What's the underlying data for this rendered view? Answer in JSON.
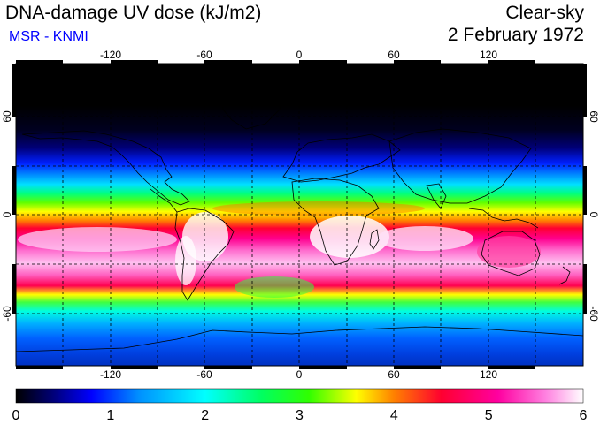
{
  "header": {
    "title": "DNA-damage UV dose (kJ/m2)",
    "source": "MSR - KNMI",
    "condition": "Clear-sky",
    "date": "2 February 1972"
  },
  "map": {
    "lon_ticks": [
      "-120",
      "-60",
      "0",
      "60",
      "120"
    ],
    "lat_ticks": [
      "60",
      "0",
      "-60"
    ]
  },
  "colorbar": {
    "labels": [
      "0",
      "1",
      "2",
      "3",
      "4",
      "5",
      "6"
    ],
    "min": 0,
    "max": 6,
    "stops": [
      {
        "v": 0.0,
        "c": "#000000"
      },
      {
        "v": 0.35,
        "c": "#00006a"
      },
      {
        "v": 0.8,
        "c": "#0000ff"
      },
      {
        "v": 1.3,
        "c": "#0090ff"
      },
      {
        "v": 2.0,
        "c": "#00ffff"
      },
      {
        "v": 2.6,
        "c": "#00ff60"
      },
      {
        "v": 3.1,
        "c": "#30ff00"
      },
      {
        "v": 3.6,
        "c": "#ffff00"
      },
      {
        "v": 4.0,
        "c": "#ff8000"
      },
      {
        "v": 4.5,
        "c": "#ff0030"
      },
      {
        "v": 5.1,
        "c": "#ff00a0"
      },
      {
        "v": 5.6,
        "c": "#ff80e0"
      },
      {
        "v": 6.0,
        "c": "#ffffff"
      }
    ]
  },
  "colors": {
    "title": "#000000",
    "source": "#0000ff"
  }
}
